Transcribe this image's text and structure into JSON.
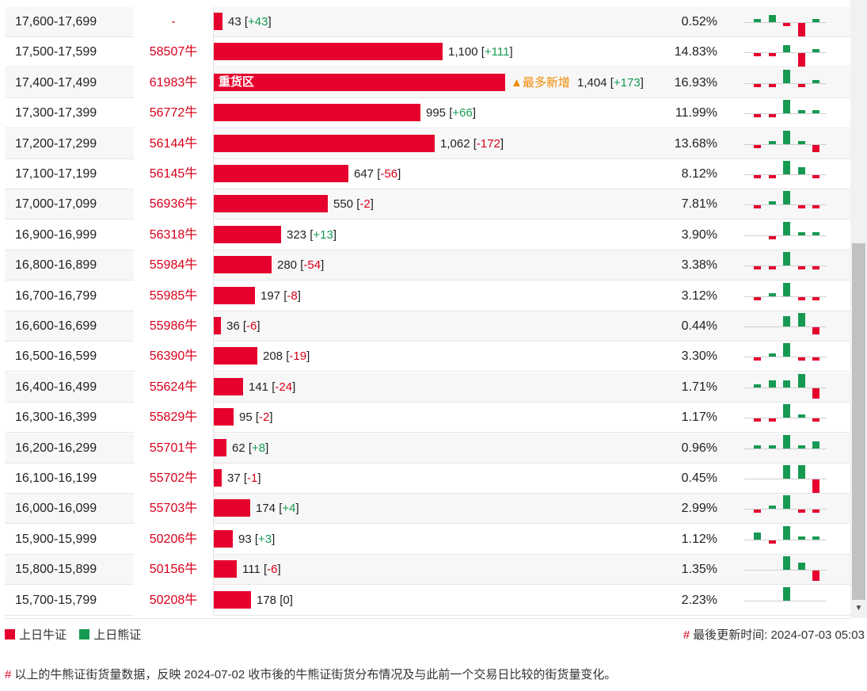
{
  "colors": {
    "bull": "#e6002d",
    "bear": "#169a52",
    "code": "#d9001b",
    "hot": "#f08a00"
  },
  "table": {
    "rows": [
      {
        "range": "17,600-17,699",
        "code": "-",
        "value": 43,
        "value_text": "43",
        "change": "+43",
        "pct": "0.52%",
        "spark": [
          1,
          2,
          -1,
          -4,
          1
        ]
      },
      {
        "range": "17,500-17,599",
        "code": "58507牛",
        "value": 1100,
        "value_text": "1,100",
        "change": "+111",
        "pct": "14.83%",
        "spark": [
          -1,
          -1,
          2,
          -4,
          1
        ]
      },
      {
        "range": "17,400-17,499",
        "code": "61983牛",
        "value": 1404,
        "value_text": "1,404",
        "change": "+173",
        "pct": "16.93%",
        "spark": [
          -1,
          -1,
          4,
          -1,
          1
        ],
        "bar_label": "重货区",
        "hot_label": "▲最多新增"
      },
      {
        "range": "17,300-17,399",
        "code": "56772牛",
        "value": 995,
        "value_text": "995",
        "change": "+66",
        "pct": "11.99%",
        "spark": [
          -1,
          -1,
          4,
          1,
          1
        ]
      },
      {
        "range": "17,200-17,299",
        "code": "56144牛",
        "value": 1062,
        "value_text": "1,062",
        "change": "-172",
        "pct": "13.68%",
        "spark": [
          -1,
          1,
          4,
          1,
          -2
        ]
      },
      {
        "range": "17,100-17,199",
        "code": "56145牛",
        "value": 647,
        "value_text": "647",
        "change": "-56",
        "pct": "8.12%",
        "spark": [
          -1,
          -1,
          4,
          2,
          -1
        ]
      },
      {
        "range": "17,000-17,099",
        "code": "56936牛",
        "value": 550,
        "value_text": "550",
        "change": "-2",
        "pct": "7.81%",
        "spark": [
          -1,
          1,
          4,
          -1,
          -1
        ]
      },
      {
        "range": "16,900-16,999",
        "code": "56318牛",
        "value": 323,
        "value_text": "323",
        "change": "+13",
        "pct": "3.90%",
        "spark": [
          0,
          -1,
          4,
          1,
          1
        ]
      },
      {
        "range": "16,800-16,899",
        "code": "55984牛",
        "value": 280,
        "value_text": "280",
        "change": "-54",
        "pct": "3.38%",
        "spark": [
          -1,
          -1,
          4,
          -1,
          -1
        ]
      },
      {
        "range": "16,700-16,799",
        "code": "55985牛",
        "value": 197,
        "value_text": "197",
        "change": "-8",
        "pct": "3.12%",
        "spark": [
          -1,
          1,
          4,
          -1,
          -1
        ]
      },
      {
        "range": "16,600-16,699",
        "code": "55986牛",
        "value": 36,
        "value_text": "36",
        "change": "-6",
        "pct": "0.44%",
        "spark": [
          0,
          0,
          3,
          4,
          -2
        ]
      },
      {
        "range": "16,500-16,599",
        "code": "56390牛",
        "value": 208,
        "value_text": "208",
        "change": "-19",
        "pct": "3.30%",
        "spark": [
          -1,
          1,
          4,
          -1,
          -1
        ]
      },
      {
        "range": "16,400-16,499",
        "code": "55624牛",
        "value": 141,
        "value_text": "141",
        "change": "-24",
        "pct": "1.71%",
        "spark": [
          1,
          2,
          2,
          4,
          -3
        ]
      },
      {
        "range": "16,300-16,399",
        "code": "55829牛",
        "value": 95,
        "value_text": "95",
        "change": "-2",
        "pct": "1.17%",
        "spark": [
          -1,
          -1,
          4,
          1,
          -1
        ]
      },
      {
        "range": "16,200-16,299",
        "code": "55701牛",
        "value": 62,
        "value_text": "62",
        "change": "+8",
        "pct": "0.96%",
        "spark": [
          1,
          1,
          4,
          1,
          2
        ]
      },
      {
        "range": "16,100-16,199",
        "code": "55702牛",
        "value": 37,
        "value_text": "37",
        "change": "-1",
        "pct": "0.45%",
        "spark": [
          0,
          0,
          4,
          4,
          -4
        ]
      },
      {
        "range": "16,000-16,099",
        "code": "55703牛",
        "value": 174,
        "value_text": "174",
        "change": "+4",
        "pct": "2.99%",
        "spark": [
          -1,
          1,
          4,
          -1,
          -1
        ]
      },
      {
        "range": "15,900-15,999",
        "code": "50206牛",
        "value": 93,
        "value_text": "93",
        "change": "+3",
        "pct": "1.12%",
        "spark": [
          2,
          -1,
          4,
          1,
          1
        ]
      },
      {
        "range": "15,800-15,899",
        "code": "50156牛",
        "value": 111,
        "value_text": "111",
        "change": "-6",
        "pct": "1.35%",
        "spark": [
          0,
          0,
          4,
          2,
          -3
        ]
      },
      {
        "range": "15,700-15,799",
        "code": "50208牛",
        "value": 178,
        "value_text": "178",
        "change": "0",
        "pct": "2.23%",
        "spark": [
          0,
          0,
          4,
          0,
          0
        ]
      }
    ]
  },
  "legend": {
    "bull_label": "上日牛证",
    "bear_label": "上日熊证"
  },
  "updated": {
    "hash": "#",
    "text": "最後更新时间: 2024-07-03 05:03"
  },
  "note": {
    "hash": "#",
    "text": "以上的牛熊证街货量数据，反映 2024-07-02 收市後的牛熊证街货分布情况及与此前一个交易日比较的街货量变化。"
  },
  "scrollbar": {
    "arrow_icon": "scroll-down-arrow-icon"
  }
}
